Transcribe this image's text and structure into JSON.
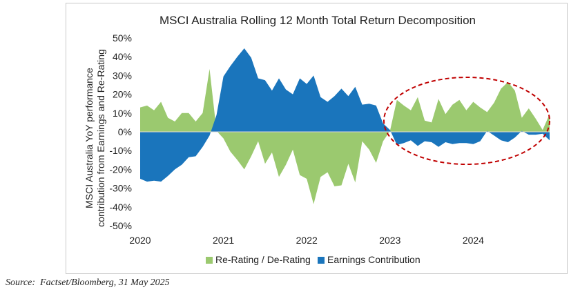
{
  "chart_data": {
    "type": "area",
    "title": "MSCI Australia Rolling 12 Month Total Return Decomposition",
    "ylabel_lines": [
      "MSCI Australia YoY performance",
      "contribution from Earnings and Re-Rating"
    ],
    "xlabel": "",
    "ylim": [
      -50,
      50
    ],
    "y_ticks": [
      50,
      40,
      30,
      20,
      10,
      0,
      -10,
      -20,
      -30,
      -40,
      -50
    ],
    "y_tick_labels": [
      "50%",
      "40%",
      "30%",
      "20%",
      "10%",
      "0%",
      "-10%",
      "-20%",
      "-30%",
      "-40%",
      "-50%"
    ],
    "x_range": [
      2020.0,
      2024.917
    ],
    "x_ticks": [
      2020,
      2021,
      2022,
      2023,
      2024
    ],
    "x_tick_labels": [
      "2020",
      "2021",
      "2022",
      "2023",
      "2024"
    ],
    "legend_position": "bottom",
    "grid": false,
    "series": [
      {
        "name": "Re-Rating / De-Rating",
        "color": "#9bc96f",
        "points": [
          [
            2020.0,
            13
          ],
          [
            2020.083,
            14
          ],
          [
            2020.167,
            11.5
          ],
          [
            2020.25,
            16
          ],
          [
            2020.333,
            7.5
          ],
          [
            2020.417,
            5.5
          ],
          [
            2020.5,
            10
          ],
          [
            2020.583,
            10
          ],
          [
            2020.667,
            5.5
          ],
          [
            2020.75,
            10
          ],
          [
            2020.833,
            33.5
          ],
          [
            2020.917,
            0.5
          ],
          [
            2021.0,
            -3.5
          ],
          [
            2021.083,
            -10.5
          ],
          [
            2021.167,
            -15
          ],
          [
            2021.25,
            -20
          ],
          [
            2021.333,
            -13
          ],
          [
            2021.417,
            -5
          ],
          [
            2021.5,
            -17
          ],
          [
            2021.583,
            -11
          ],
          [
            2021.667,
            -24
          ],
          [
            2021.75,
            -17.5
          ],
          [
            2021.833,
            -9.5
          ],
          [
            2021.917,
            -23
          ],
          [
            2022.0,
            -25
          ],
          [
            2022.083,
            -38.5
          ],
          [
            2022.167,
            -24
          ],
          [
            2022.25,
            -21.5
          ],
          [
            2022.333,
            -29
          ],
          [
            2022.417,
            -28.5
          ],
          [
            2022.5,
            -17
          ],
          [
            2022.583,
            -27
          ],
          [
            2022.667,
            -5
          ],
          [
            2022.75,
            -9.5
          ],
          [
            2022.833,
            -16.5
          ],
          [
            2022.917,
            -5
          ],
          [
            2023.0,
            0.5
          ],
          [
            2023.083,
            17
          ],
          [
            2023.167,
            14
          ],
          [
            2023.25,
            11.5
          ],
          [
            2023.333,
            18.5
          ],
          [
            2023.417,
            6
          ],
          [
            2023.5,
            5
          ],
          [
            2023.583,
            17.5
          ],
          [
            2023.667,
            9.5
          ],
          [
            2023.75,
            14.5
          ],
          [
            2023.833,
            17
          ],
          [
            2023.917,
            11.5
          ],
          [
            2024.0,
            16
          ],
          [
            2024.083,
            13
          ],
          [
            2024.167,
            10.5
          ],
          [
            2024.25,
            15.5
          ],
          [
            2024.333,
            23
          ],
          [
            2024.417,
            26.5
          ],
          [
            2024.5,
            22
          ],
          [
            2024.583,
            7.5
          ],
          [
            2024.667,
            12.5
          ],
          [
            2024.75,
            7
          ],
          [
            2024.833,
            1
          ],
          [
            2024.917,
            9.5
          ]
        ]
      },
      {
        "name": "Earnings Contribution",
        "color": "#1a75bc",
        "points": [
          [
            2020.0,
            -25
          ],
          [
            2020.083,
            -26.5
          ],
          [
            2020.167,
            -26
          ],
          [
            2020.25,
            -26.5
          ],
          [
            2020.333,
            -23.5
          ],
          [
            2020.417,
            -20
          ],
          [
            2020.5,
            -17.5
          ],
          [
            2020.583,
            -13.5
          ],
          [
            2020.667,
            -13
          ],
          [
            2020.75,
            -8
          ],
          [
            2020.833,
            -2
          ],
          [
            2020.917,
            9
          ],
          [
            2021.0,
            29.5
          ],
          [
            2021.083,
            35
          ],
          [
            2021.167,
            40
          ],
          [
            2021.25,
            44.5
          ],
          [
            2021.333,
            39.5
          ],
          [
            2021.417,
            28.5
          ],
          [
            2021.5,
            27.5
          ],
          [
            2021.583,
            22
          ],
          [
            2021.667,
            28.5
          ],
          [
            2021.75,
            22.5
          ],
          [
            2021.833,
            20
          ],
          [
            2021.917,
            28.5
          ],
          [
            2022.0,
            25.5
          ],
          [
            2022.083,
            30
          ],
          [
            2022.167,
            18.5
          ],
          [
            2022.25,
            16
          ],
          [
            2022.333,
            19
          ],
          [
            2022.417,
            23
          ],
          [
            2022.5,
            19
          ],
          [
            2022.583,
            24
          ],
          [
            2022.667,
            14.5
          ],
          [
            2022.75,
            15
          ],
          [
            2022.833,
            14
          ],
          [
            2022.917,
            4.5
          ],
          [
            2023.0,
            1
          ],
          [
            2023.083,
            -7
          ],
          [
            2023.167,
            -6
          ],
          [
            2023.25,
            -4.5
          ],
          [
            2023.333,
            -7.5
          ],
          [
            2023.417,
            -5
          ],
          [
            2023.5,
            -5.5
          ],
          [
            2023.583,
            -8
          ],
          [
            2023.667,
            -5.5
          ],
          [
            2023.75,
            -6.5
          ],
          [
            2023.833,
            -6
          ],
          [
            2023.917,
            -6
          ],
          [
            2024.0,
            -6.5
          ],
          [
            2024.083,
            -5
          ],
          [
            2024.167,
            0.5
          ],
          [
            2024.25,
            -2
          ],
          [
            2024.333,
            -4.5
          ],
          [
            2024.417,
            -5.5
          ],
          [
            2024.5,
            -3
          ],
          [
            2024.583,
            0.5
          ],
          [
            2024.667,
            -1.5
          ],
          [
            2024.75,
            -1.5
          ],
          [
            2024.833,
            -1
          ],
          [
            2024.917,
            -4.5
          ]
        ]
      }
    ]
  },
  "source_text": "Source:  Factset/Bloomberg, 31 May 2025"
}
